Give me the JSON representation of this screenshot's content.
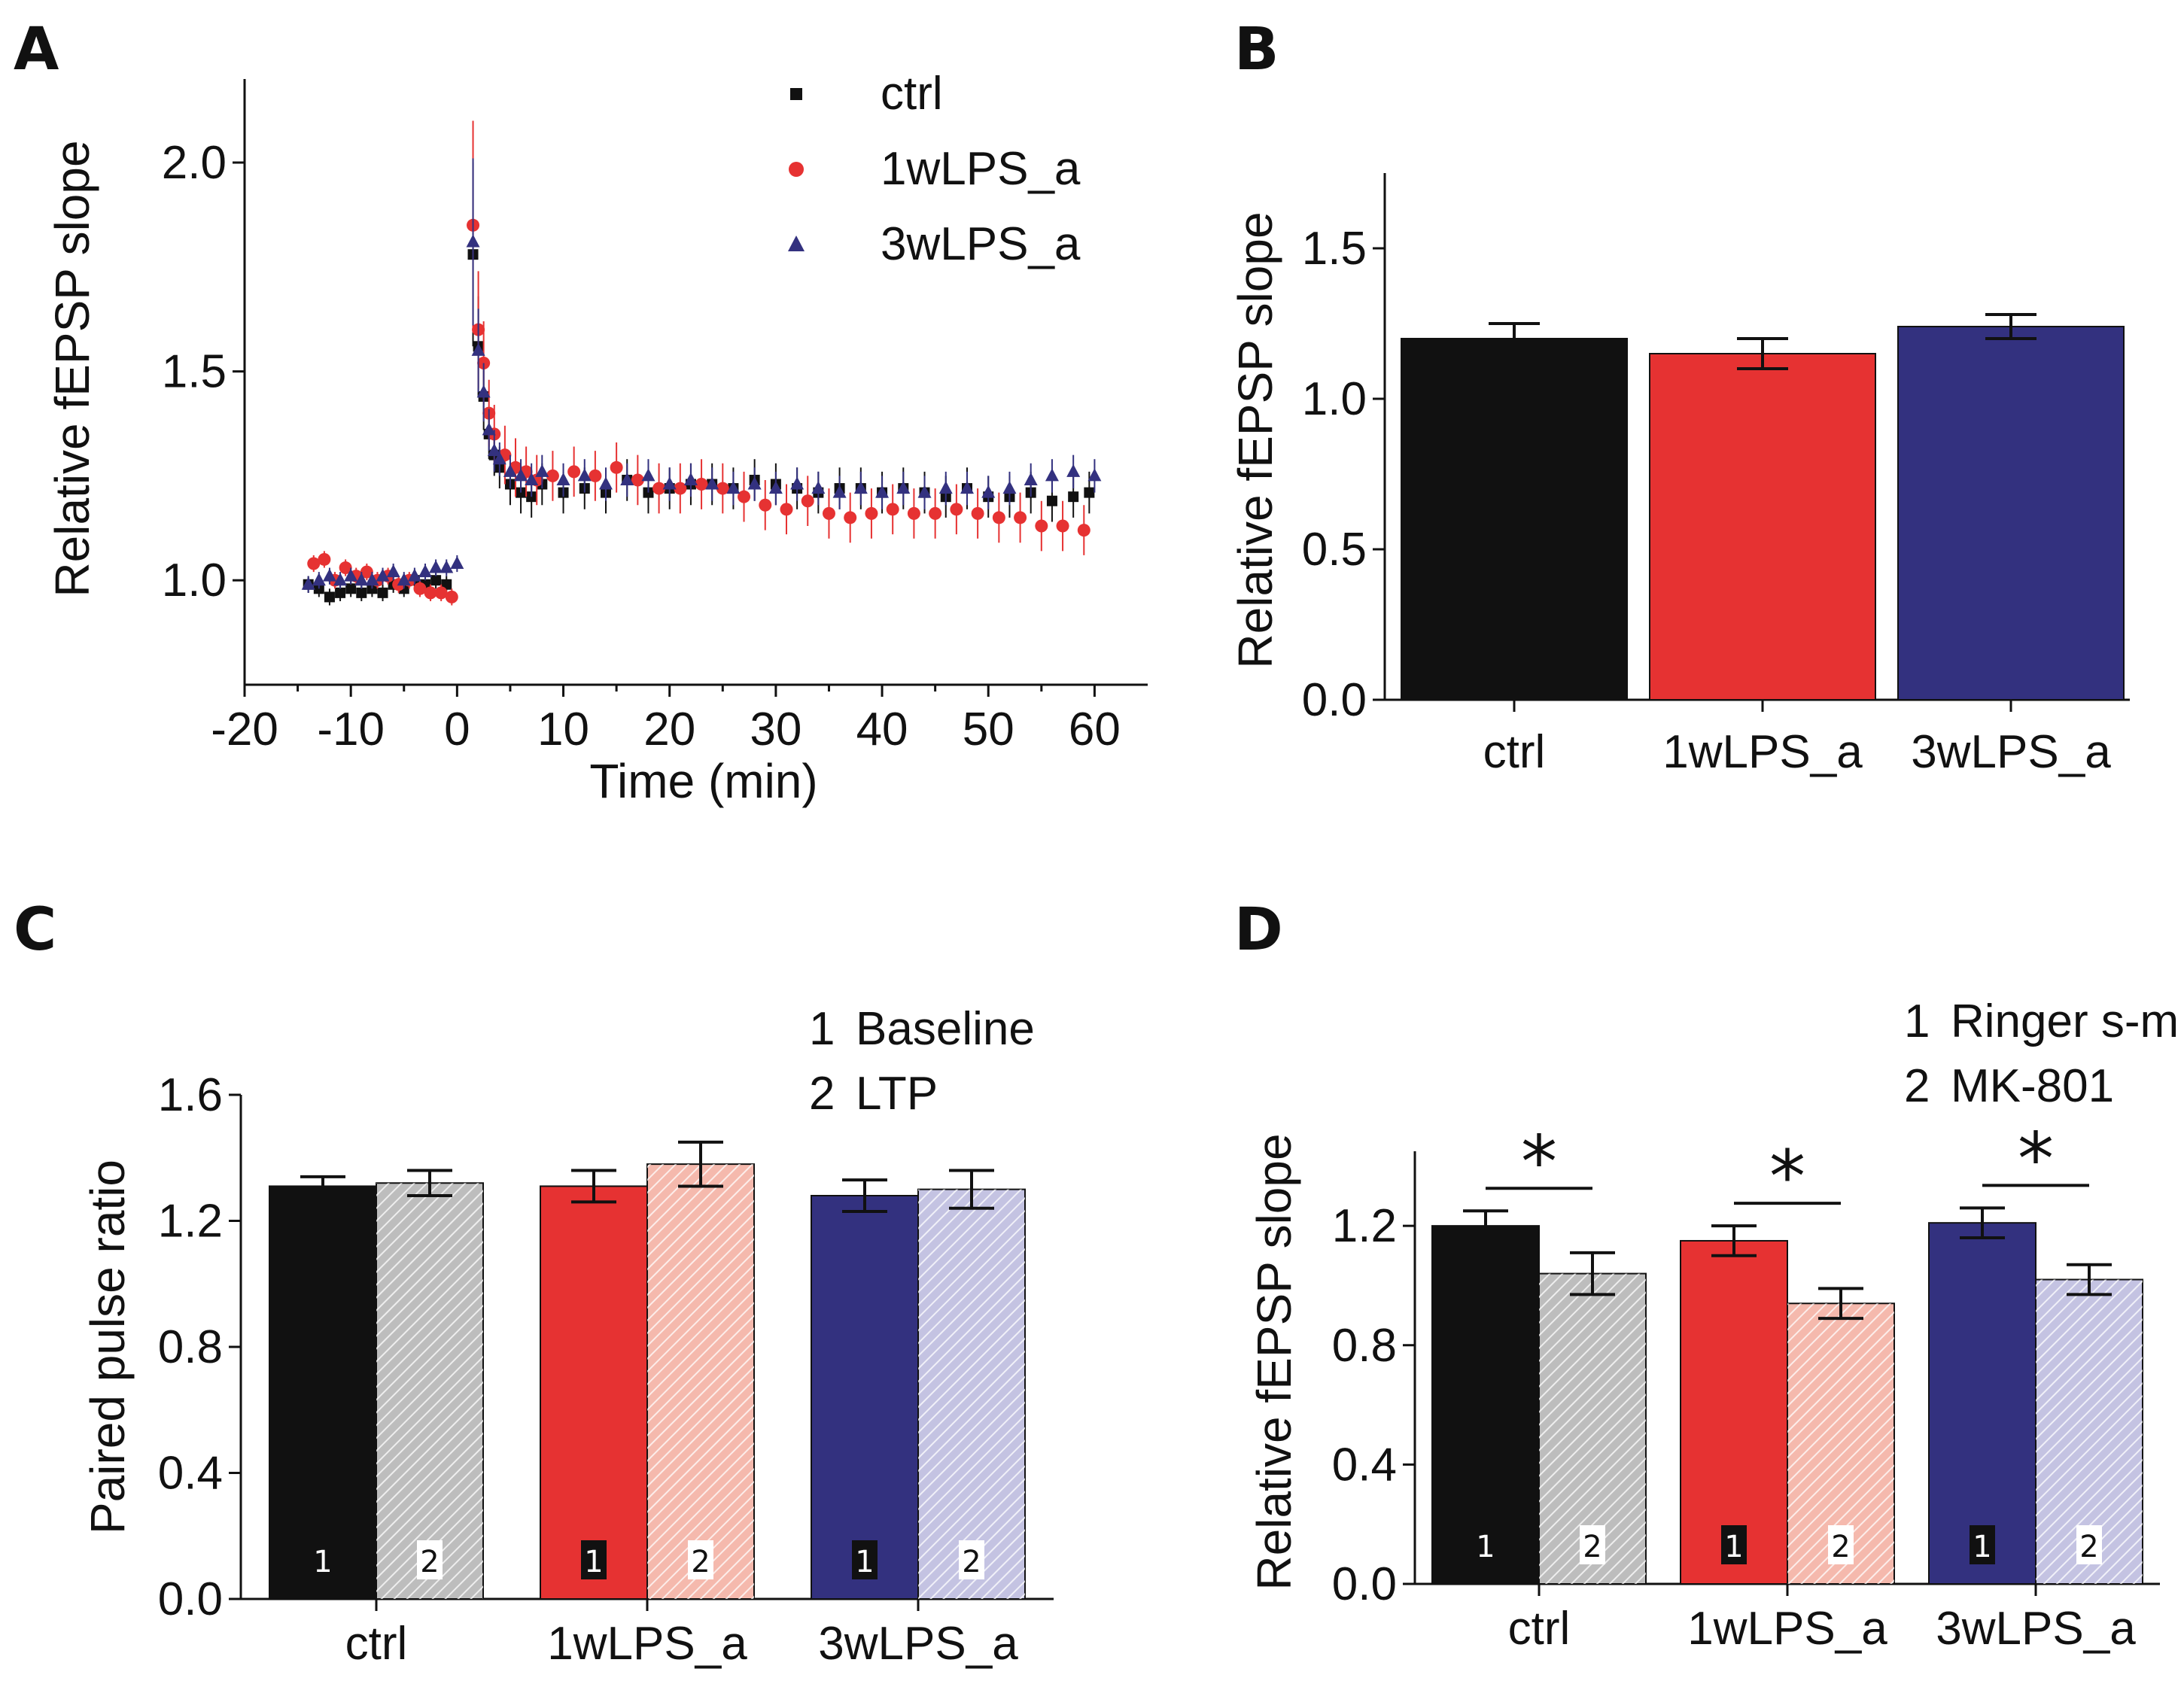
{
  "colors": {
    "ctrl": "#111111",
    "lps1w": "#e63232",
    "lps3w": "#33317f",
    "ctrl_light": "#bdbdbd",
    "lps1w_light": "#f5b9ad",
    "lps3w_light": "#c4c3e2"
  },
  "chart_data": [
    {
      "panel": "A",
      "type": "scatter",
      "xlabel": "Time (min)",
      "ylabel": "Relative fEPSP slope",
      "xlim": [
        -20,
        65
      ],
      "ylim": [
        0.75,
        2.2
      ],
      "xticks": [
        -20,
        -10,
        0,
        10,
        20,
        30,
        40,
        50,
        60
      ],
      "xtick_labels": [
        "-20",
        "-10",
        "0",
        "10",
        "20",
        "30",
        "40",
        "50",
        "60"
      ],
      "yticks": [
        1.0,
        1.5,
        2.0
      ],
      "ytick_labels": [
        "1.0",
        "1.5",
        "2.0"
      ],
      "legend_position": "top-right",
      "series": [
        {
          "name": "ctrl",
          "marker": "square",
          "color_key": "ctrl",
          "x": [
            -14,
            -13,
            -12,
            -11,
            -10,
            -9,
            -8,
            -7,
            -6,
            -5,
            -4,
            -3,
            -2,
            -1,
            1.5,
            2,
            2.5,
            3,
            3.5,
            4,
            5,
            6,
            7,
            8,
            10,
            12,
            14,
            16,
            18,
            20,
            22,
            24,
            26,
            28,
            30,
            32,
            34,
            36,
            38,
            40,
            42,
            44,
            46,
            48,
            50,
            52,
            54,
            56,
            58,
            59.5
          ],
          "y": [
            0.99,
            0.98,
            0.96,
            0.97,
            0.98,
            0.97,
            0.98,
            0.97,
            0.99,
            0.98,
            1.0,
            0.99,
            1.0,
            0.99,
            1.78,
            1.56,
            1.44,
            1.35,
            1.3,
            1.27,
            1.23,
            1.21,
            1.2,
            1.23,
            1.21,
            1.22,
            1.21,
            1.24,
            1.21,
            1.22,
            1.23,
            1.23,
            1.22,
            1.24,
            1.23,
            1.22,
            1.21,
            1.22,
            1.22,
            1.21,
            1.22,
            1.21,
            1.2,
            1.22,
            1.2,
            1.2,
            1.21,
            1.19,
            1.2,
            1.21
          ],
          "err": [
            0.02,
            0.02,
            0.02,
            0.02,
            0.02,
            0.02,
            0.02,
            0.02,
            0.02,
            0.02,
            0.02,
            0.02,
            0.02,
            0.02,
            0.22,
            0.12,
            0.08,
            0.06,
            0.05,
            0.05,
            0.05,
            0.05,
            0.05,
            0.05,
            0.05,
            0.05,
            0.05,
            0.05,
            0.05,
            0.05,
            0.05,
            0.05,
            0.05,
            0.05,
            0.05,
            0.05,
            0.05,
            0.05,
            0.05,
            0.05,
            0.05,
            0.05,
            0.05,
            0.05,
            0.05,
            0.05,
            0.05,
            0.05,
            0.05,
            0.05
          ]
        },
        {
          "name": "1wLPS_a",
          "marker": "circle",
          "color_key": "lps1w",
          "x": [
            -13.5,
            -12.5,
            -11.5,
            -10.5,
            -9.5,
            -8.5,
            -7.5,
            -6.5,
            -5.5,
            -4.5,
            -3.5,
            -2.5,
            -1.5,
            -0.5,
            1.5,
            2,
            2.5,
            3,
            3.5,
            4.5,
            5.5,
            6.5,
            7.5,
            9,
            11,
            13,
            15,
            17,
            19,
            21,
            23,
            25,
            27,
            29,
            31,
            33,
            35,
            37,
            39,
            41,
            43,
            45,
            47,
            49,
            51,
            53,
            55,
            57,
            59
          ],
          "y": [
            1.04,
            1.05,
            1.0,
            1.03,
            1.01,
            1.02,
            1.0,
            1.01,
            0.99,
            1.0,
            0.98,
            0.97,
            0.97,
            0.96,
            1.85,
            1.6,
            1.52,
            1.4,
            1.35,
            1.3,
            1.27,
            1.26,
            1.24,
            1.25,
            1.26,
            1.25,
            1.27,
            1.24,
            1.22,
            1.22,
            1.23,
            1.22,
            1.2,
            1.18,
            1.17,
            1.19,
            1.16,
            1.15,
            1.16,
            1.17,
            1.16,
            1.16,
            1.17,
            1.16,
            1.15,
            1.15,
            1.13,
            1.13,
            1.12
          ],
          "err": [
            0.02,
            0.02,
            0.02,
            0.02,
            0.02,
            0.02,
            0.02,
            0.02,
            0.02,
            0.02,
            0.02,
            0.02,
            0.02,
            0.02,
            0.25,
            0.14,
            0.1,
            0.08,
            0.07,
            0.07,
            0.07,
            0.06,
            0.06,
            0.06,
            0.06,
            0.06,
            0.06,
            0.06,
            0.06,
            0.06,
            0.06,
            0.06,
            0.06,
            0.06,
            0.06,
            0.06,
            0.06,
            0.06,
            0.06,
            0.06,
            0.06,
            0.06,
            0.06,
            0.06,
            0.06,
            0.06,
            0.06,
            0.06,
            0.06
          ]
        },
        {
          "name": "3wLPS_a",
          "marker": "triangle",
          "color_key": "lps3w",
          "x": [
            -14,
            -13,
            -12,
            -11,
            -10,
            -9,
            -8,
            -7,
            -6,
            -5,
            -4,
            -3,
            -2,
            -1,
            0,
            1.5,
            2,
            2.5,
            3,
            3.5,
            4,
            5,
            6,
            7,
            8,
            10,
            12,
            14,
            16,
            18,
            20,
            22,
            24,
            26,
            28,
            30,
            32,
            34,
            36,
            38,
            40,
            42,
            44,
            46,
            48,
            50,
            52,
            54,
            56,
            58,
            60
          ],
          "y": [
            0.99,
            1.0,
            1.01,
            1.0,
            1.01,
            1.0,
            1.0,
            1.01,
            1.02,
            1.0,
            1.01,
            1.02,
            1.03,
            1.03,
            1.04,
            1.81,
            1.55,
            1.45,
            1.36,
            1.31,
            1.29,
            1.26,
            1.25,
            1.24,
            1.26,
            1.24,
            1.25,
            1.23,
            1.24,
            1.25,
            1.23,
            1.24,
            1.23,
            1.22,
            1.23,
            1.22,
            1.23,
            1.22,
            1.21,
            1.22,
            1.21,
            1.22,
            1.21,
            1.22,
            1.22,
            1.21,
            1.22,
            1.24,
            1.25,
            1.26,
            1.25
          ],
          "err": [
            0.02,
            0.02,
            0.02,
            0.02,
            0.02,
            0.02,
            0.02,
            0.02,
            0.02,
            0.02,
            0.02,
            0.02,
            0.02,
            0.02,
            0.02,
            0.2,
            0.1,
            0.07,
            0.05,
            0.05,
            0.04,
            0.04,
            0.04,
            0.04,
            0.04,
            0.04,
            0.04,
            0.04,
            0.04,
            0.04,
            0.04,
            0.04,
            0.04,
            0.04,
            0.04,
            0.04,
            0.04,
            0.04,
            0.04,
            0.04,
            0.04,
            0.04,
            0.04,
            0.04,
            0.04,
            0.04,
            0.04,
            0.04,
            0.04,
            0.04,
            0.04
          ]
        }
      ]
    },
    {
      "panel": "B",
      "type": "bar",
      "ylabel": "Relative fEPSP slope",
      "ylim": [
        0,
        1.75
      ],
      "yticks": [
        0.0,
        0.5,
        1.0,
        1.5
      ],
      "ytick_labels": [
        "0.0",
        "0.5",
        "1.0",
        "1.5"
      ],
      "categories": [
        "ctrl",
        "1wLPS_a",
        "3wLPS_a"
      ],
      "values": [
        1.2,
        1.15,
        1.24
      ],
      "errors": [
        0.05,
        0.05,
        0.04
      ],
      "color_keys": [
        "ctrl",
        "lps1w",
        "lps3w"
      ]
    },
    {
      "panel": "C",
      "type": "bar",
      "ylabel": "Paired pulse ratio",
      "ylim": [
        0,
        1.6
      ],
      "yticks": [
        0.0,
        0.4,
        0.8,
        1.2,
        1.6
      ],
      "ytick_labels": [
        "0.0",
        "0.4",
        "0.8",
        "1.2",
        "1.6"
      ],
      "categories": [
        "ctrl",
        "1wLPS_a",
        "3wLPS_a"
      ],
      "legend_position": "top-right",
      "legend": [
        {
          "mark": "1",
          "label": "Baseline"
        },
        {
          "mark": "2",
          "label": "LTP"
        }
      ],
      "bar_marks": [
        "1",
        "2"
      ],
      "series": [
        {
          "name": "Baseline",
          "values": [
            1.31,
            1.31,
            1.28
          ],
          "errors": [
            0.03,
            0.05,
            0.05
          ],
          "color_keys": [
            "ctrl",
            "lps1w",
            "lps3w"
          ],
          "hatched": false
        },
        {
          "name": "LTP",
          "values": [
            1.32,
            1.38,
            1.3
          ],
          "errors": [
            0.04,
            0.07,
            0.06
          ],
          "color_keys": [
            "ctrl_light",
            "lps1w_light",
            "lps3w_light"
          ],
          "hatched": true
        }
      ]
    },
    {
      "panel": "D",
      "type": "bar",
      "ylabel": "Relative fEPSP slope",
      "ylim": [
        0,
        1.45
      ],
      "yticks": [
        0.0,
        0.4,
        0.8,
        1.2
      ],
      "ytick_labels": [
        "0.0",
        "0.4",
        "0.8",
        "1.2"
      ],
      "categories": [
        "ctrl",
        "1wLPS_a",
        "3wLPS_a"
      ],
      "legend_position": "top-right",
      "legend": [
        {
          "mark": "1",
          "label": "Ringer s-m"
        },
        {
          "mark": "2",
          "label": "MK-801"
        }
      ],
      "bar_marks": [
        "1",
        "2"
      ],
      "significance": [
        "*",
        "*",
        "*"
      ],
      "series": [
        {
          "name": "Ringer s-m",
          "values": [
            1.2,
            1.15,
            1.21
          ],
          "errors": [
            0.05,
            0.05,
            0.05
          ],
          "color_keys": [
            "ctrl",
            "lps1w",
            "lps3w"
          ],
          "hatched": false
        },
        {
          "name": "MK-801",
          "values": [
            1.04,
            0.94,
            1.02
          ],
          "errors": [
            0.07,
            0.05,
            0.05
          ],
          "color_keys": [
            "ctrl_light",
            "lps1w_light",
            "lps3w_light"
          ],
          "hatched": true
        }
      ]
    }
  ]
}
